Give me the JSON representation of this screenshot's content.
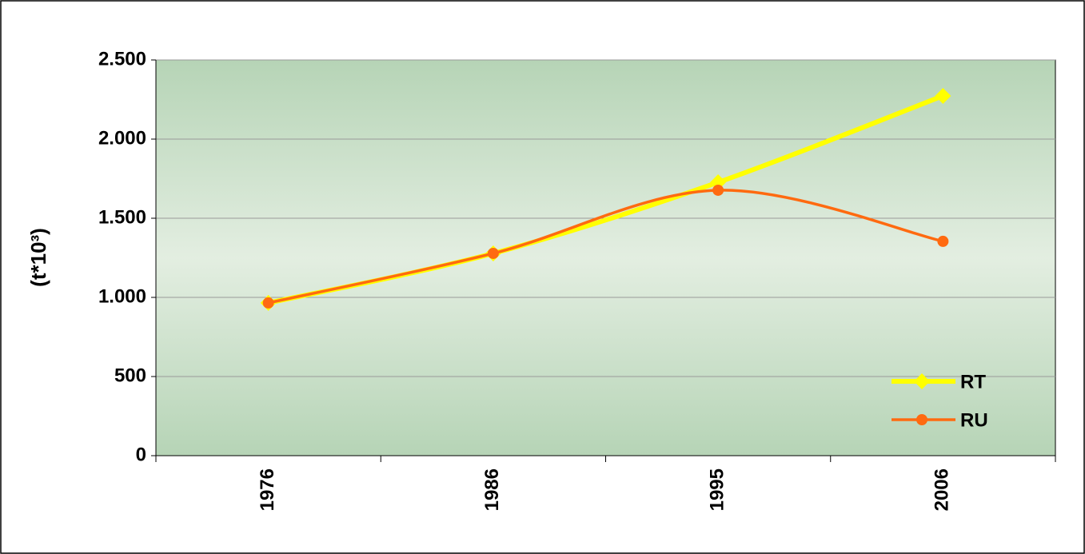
{
  "chart_data": {
    "type": "line",
    "ylabel": "(t*10³)",
    "categories": [
      "1976",
      "1986",
      "1995",
      "2006"
    ],
    "series": [
      {
        "name": "RT",
        "color": "#ffff00",
        "marker": "diamond",
        "values": [
          965,
          1278,
          1727,
          2273
        ]
      },
      {
        "name": "RU",
        "color": "#ff6a10",
        "marker": "circle",
        "values": [
          965,
          1278,
          1677,
          1354
        ]
      }
    ],
    "ylim": [
      0,
      2500
    ],
    "yticks": [
      0,
      500,
      {
        "value": 1000,
        "label": "1.000"
      },
      {
        "value": 1500,
        "label": "1.500"
      },
      {
        "value": 2000,
        "label": "2.000"
      },
      {
        "value": 2500,
        "label": "2.500"
      }
    ],
    "grid": true,
    "smooth": true,
    "legend": "lower right"
  }
}
